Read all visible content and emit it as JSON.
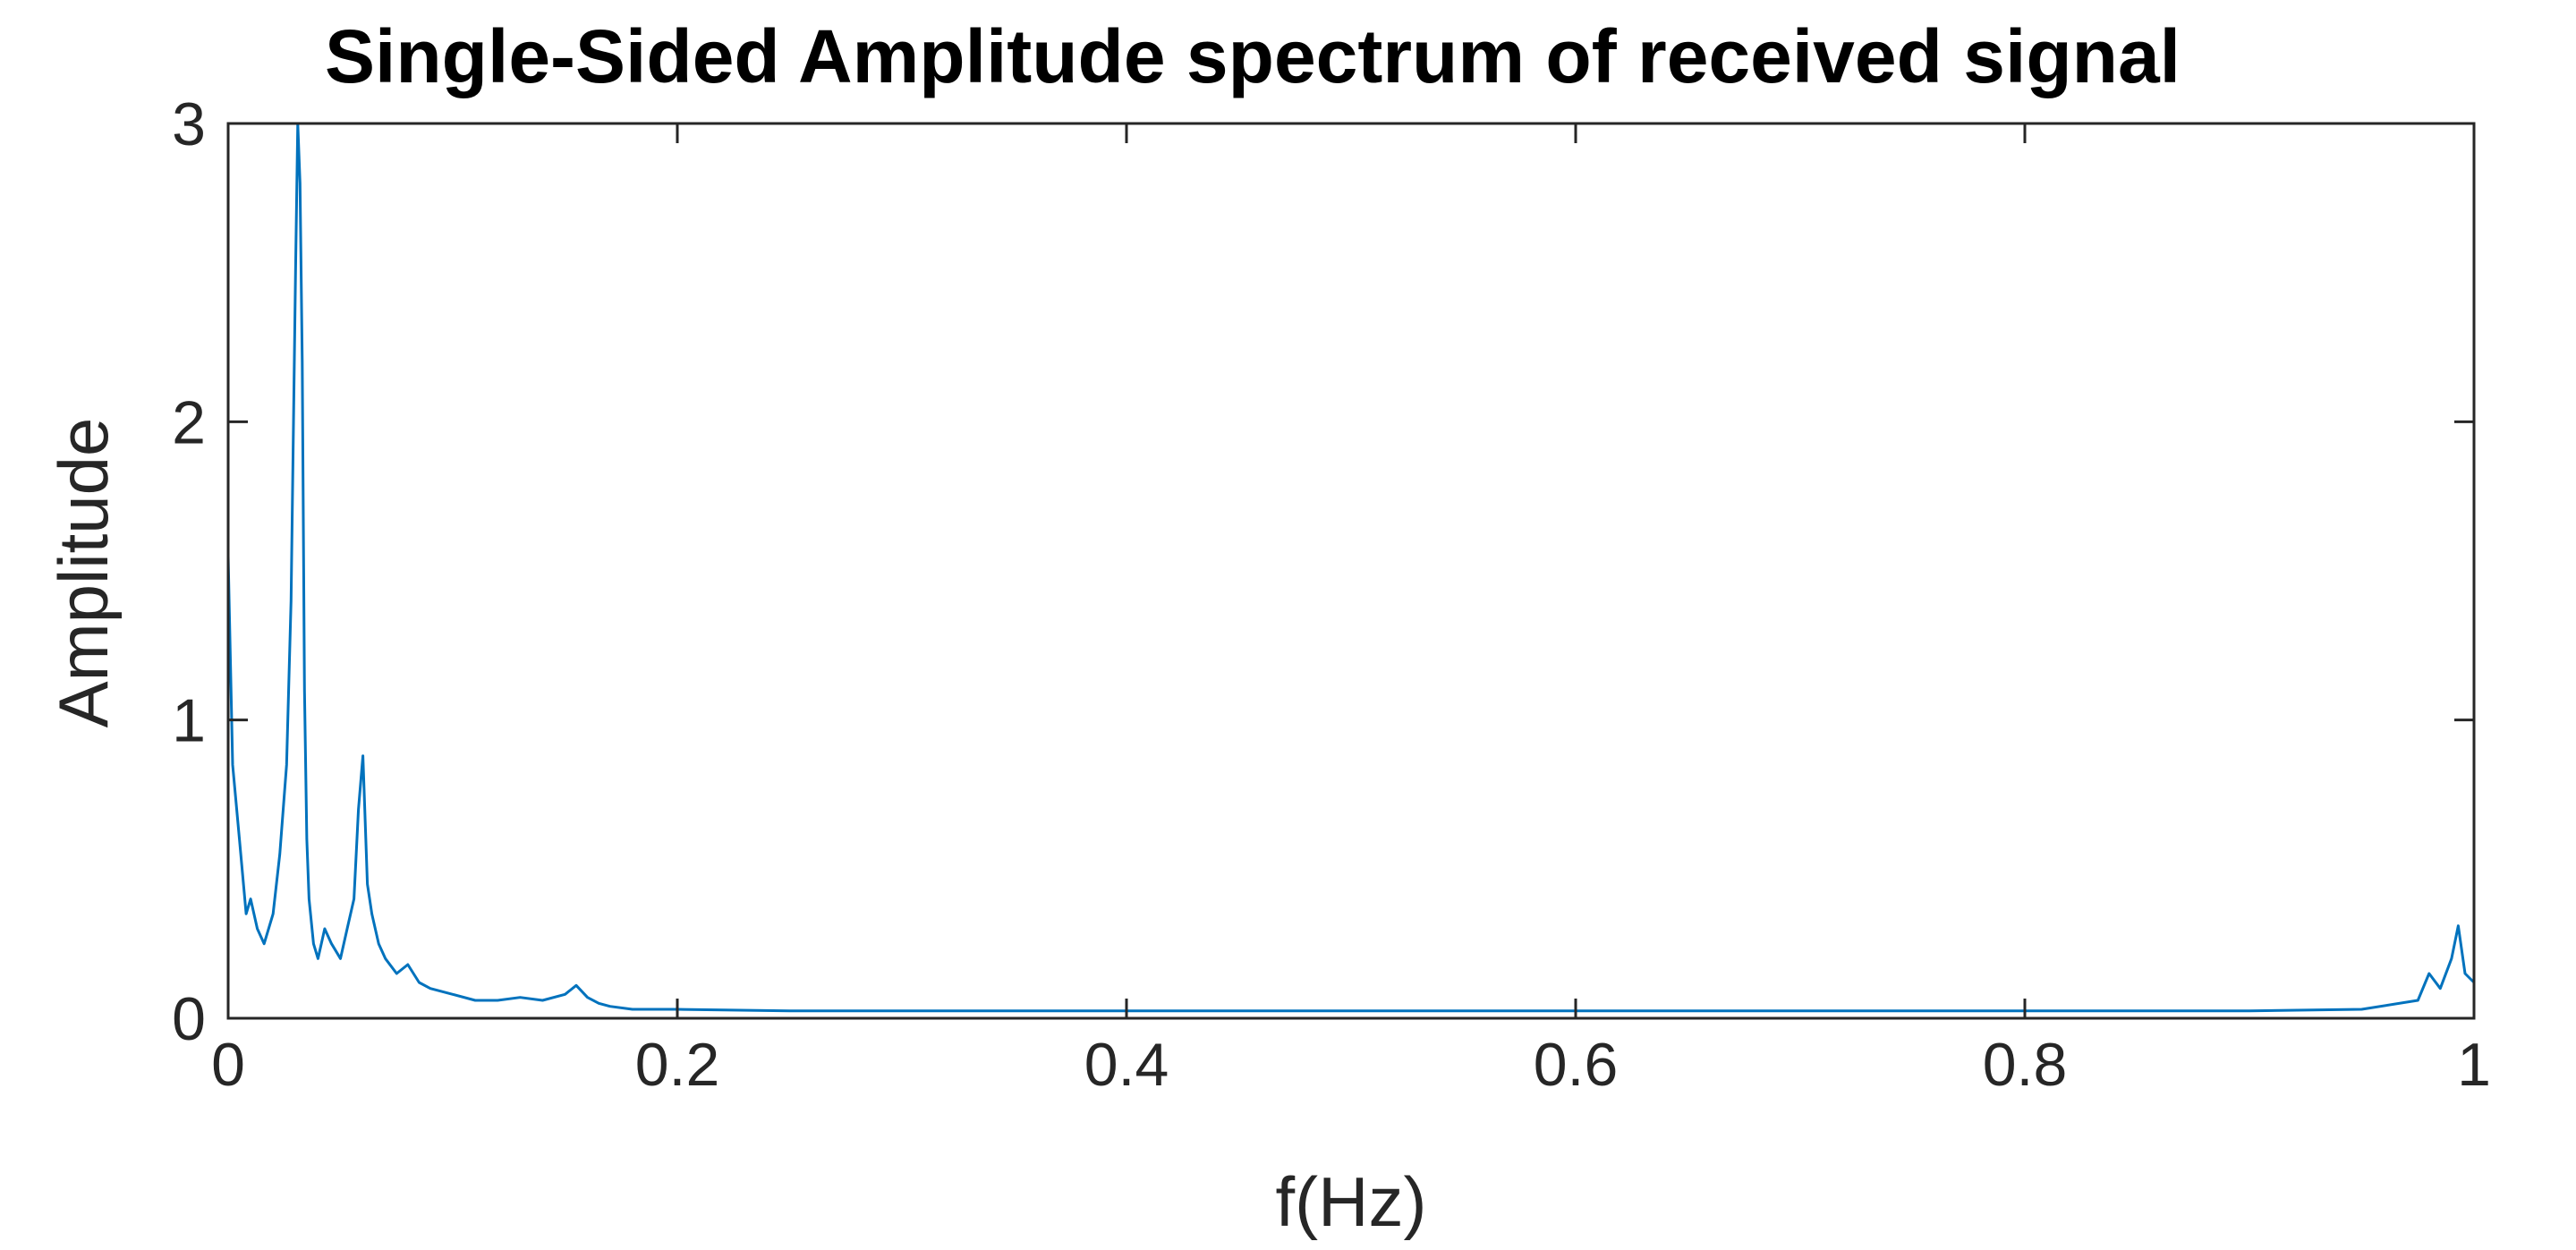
{
  "chart_data": {
    "type": "line",
    "title": "Single-Sided Amplitude spectrum of received signal",
    "xlabel": "f(Hz)",
    "ylabel": "Amplitude",
    "xlim": [
      0,
      1
    ],
    "ylim": [
      0,
      3
    ],
    "x_ticks": [
      0,
      0.2,
      0.4,
      0.6,
      0.8,
      1
    ],
    "x_tick_labels": [
      "0",
      "0.2",
      "0.4",
      "0.6",
      "0.8",
      "1"
    ],
    "y_ticks": [
      0,
      1,
      2,
      3
    ],
    "y_tick_labels": [
      "0",
      "1",
      "2",
      "3"
    ],
    "grid": false,
    "box": true,
    "series_color": "#0072BD",
    "series": [
      {
        "x": [
          0,
          0.002,
          0.005,
          0.008,
          0.01,
          0.013,
          0.016,
          0.02,
          0.023,
          0.026,
          0.028,
          0.03,
          0.031,
          0.032,
          0.033,
          0.034,
          0.035,
          0.036,
          0.038,
          0.04,
          0.043,
          0.046,
          0.05,
          0.053,
          0.056,
          0.058,
          0.06,
          0.062,
          0.064,
          0.067,
          0.07,
          0.075,
          0.08,
          0.085,
          0.09,
          0.1,
          0.11,
          0.12,
          0.13,
          0.14,
          0.15,
          0.155,
          0.16,
          0.165,
          0.17,
          0.18,
          0.2,
          0.25,
          0.3,
          0.35,
          0.4,
          0.45,
          0.5,
          0.55,
          0.6,
          0.65,
          0.7,
          0.75,
          0.8,
          0.85,
          0.9,
          0.95,
          0.975,
          0.98,
          0.985,
          0.99,
          0.993,
          0.996,
          1.0
        ],
        "y": [
          1.55,
          0.85,
          0.6,
          0.35,
          0.4,
          0.3,
          0.25,
          0.35,
          0.55,
          0.85,
          1.4,
          2.5,
          3.0,
          2.8,
          2.2,
          1.1,
          0.6,
          0.4,
          0.25,
          0.2,
          0.3,
          0.25,
          0.2,
          0.3,
          0.4,
          0.7,
          0.88,
          0.45,
          0.35,
          0.25,
          0.2,
          0.15,
          0.18,
          0.12,
          0.1,
          0.08,
          0.06,
          0.06,
          0.07,
          0.06,
          0.08,
          0.11,
          0.07,
          0.05,
          0.04,
          0.03,
          0.03,
          0.025,
          0.025,
          0.025,
          0.025,
          0.025,
          0.025,
          0.025,
          0.025,
          0.025,
          0.025,
          0.025,
          0.025,
          0.025,
          0.025,
          0.03,
          0.06,
          0.15,
          0.1,
          0.2,
          0.31,
          0.15,
          0.12
        ]
      }
    ]
  }
}
